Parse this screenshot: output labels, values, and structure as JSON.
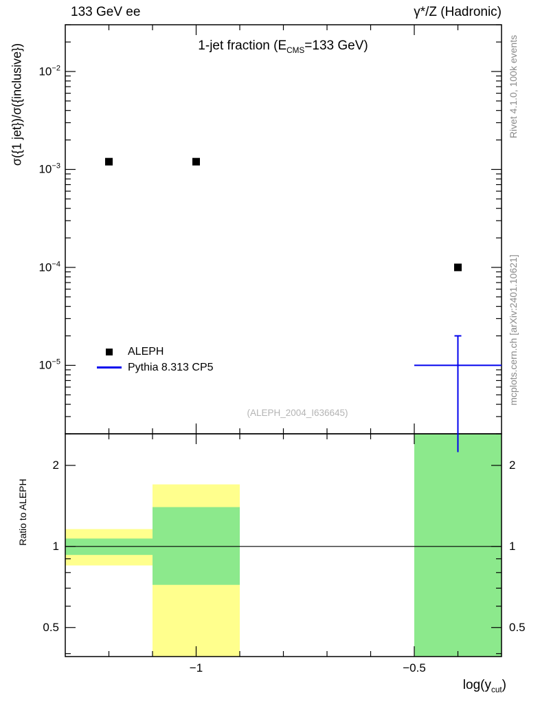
{
  "header": {
    "left": "133 GeV ee",
    "right": "γ*/Z (Hadronic)"
  },
  "side_text": {
    "top_right": "Rivet 4.1.0,  100k events",
    "bottom_right": "mcplots.cern.ch [arXiv:2401.10621]"
  },
  "watermark": "(ALEPH_2004_I636645)",
  "legend": {
    "items": [
      {
        "label": "ALEPH"
      },
      {
        "label": "Pythia 8.313 CP5"
      }
    ]
  },
  "chart_data": {
    "type": "scatter",
    "title": "1-jet fraction (E_CMS=133 GeV)",
    "title_parts": {
      "pre": "1-jet fraction (E",
      "sub": "CMS",
      "post": "=133 GeV)"
    },
    "xlabel": "log(y_cut)",
    "xlabel_parts": {
      "pre": "log(y",
      "sub": "cut",
      "post": ")"
    },
    "ylabel": "σ({1 jet})/σ({inclusive})",
    "ratio_ylabel": "Ratio to ALEPH",
    "axes": {
      "x_range": [
        -1.3,
        -0.3
      ],
      "x_major_ticks": [
        -1,
        -0.5
      ],
      "x_minor_step": 0.1,
      "main_y_scale": "log",
      "main_y_range": [
        2e-06,
        0.03
      ],
      "main_y_tick_exponents": [
        -2,
        -3,
        -4,
        -5
      ],
      "ratio_y_scale": "log",
      "ratio_y_range": [
        0.39,
        2.62
      ],
      "ratio_y_ticks": [
        0.5,
        1,
        2
      ],
      "ratio_reference_y": 1
    },
    "series": [
      {
        "name": "ALEPH",
        "role": "data",
        "marker": "filled-square",
        "color": "#000000",
        "points": [
          {
            "x": -1.2,
            "y": 0.0012
          },
          {
            "x": -1.0,
            "y": 0.0012
          },
          {
            "x": -0.4,
            "y": 0.0001
          }
        ]
      },
      {
        "name": "Pythia 8.313 CP5",
        "role": "mc",
        "marker": "cross-errorbar",
        "color": "#0000ee",
        "points": [
          {
            "x": -0.4,
            "y": 1e-05,
            "xlo": -0.5,
            "xhi": -0.3,
            "ylo": 1.3e-06,
            "yhi": 2e-05
          }
        ]
      }
    ],
    "ratio_bands": {
      "colors": {
        "data_band": "#ffff8d",
        "mc_band": "#8ce98c"
      },
      "bins": [
        {
          "x1": -1.3,
          "x2": -1.1,
          "yellow": [
            0.85,
            1.16
          ],
          "green": [
            0.93,
            1.07
          ]
        },
        {
          "x1": -1.1,
          "x2": -0.9,
          "yellow": [
            0.39,
            1.7
          ],
          "green": [
            0.72,
            1.4
          ]
        },
        {
          "x1": -0.5,
          "x2": -0.3,
          "yellow": null,
          "green": [
            0.39,
            2.62
          ]
        }
      ]
    }
  }
}
